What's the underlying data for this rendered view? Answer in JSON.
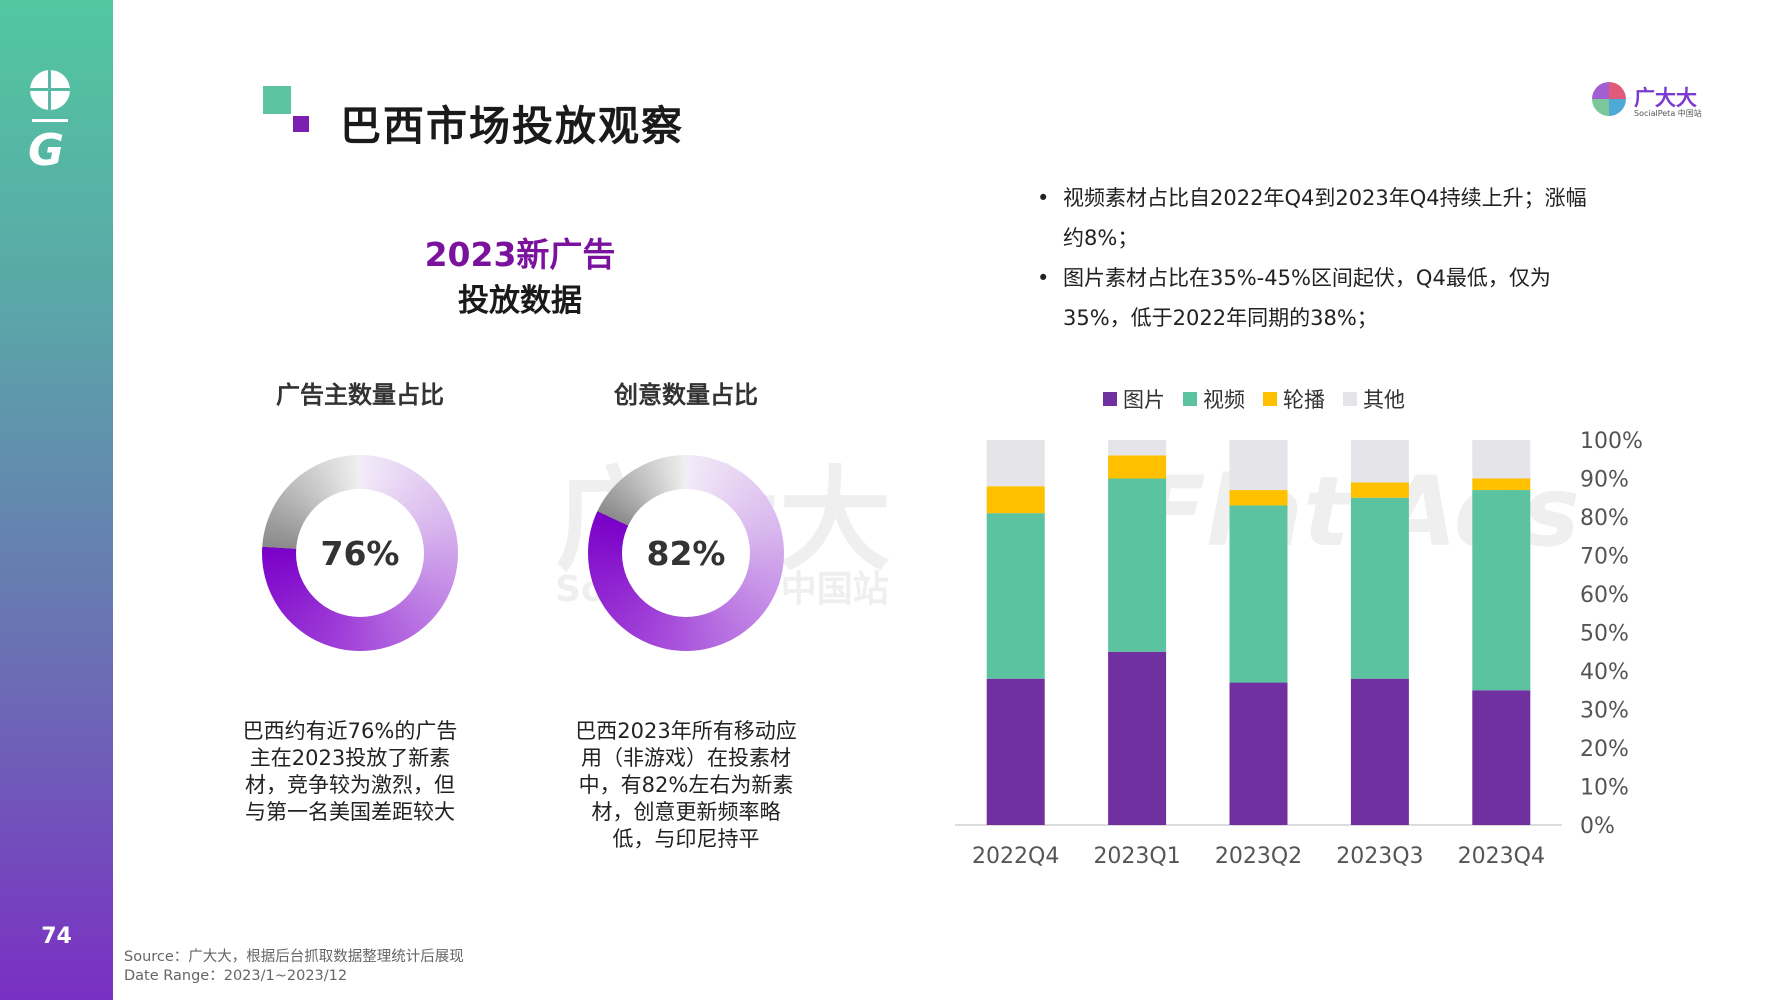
{
  "page": {
    "title": "巴西市场投放观察",
    "page_number": "74",
    "brand_name": "广大大",
    "brand_sub": "SocialPeta 中国站"
  },
  "section": {
    "title_line1": "2023新广告",
    "title_line2": "投放数据"
  },
  "donuts": [
    {
      "title": "广告主数量占比",
      "value": 76,
      "label": "76%",
      "description": "巴西约有近76%的广告主在2023投放了新素材，竞争较为激烈，但与第一名美国差距较大"
    },
    {
      "title": "创意数量占比",
      "value": 82,
      "label": "82%",
      "description": "巴西2023年所有移动应用（非游戏）在投素材中，有82%左右为新素材，创意更新频率略低，与印尼持平"
    }
  ],
  "bullets": [
    "视频素材占比自2022年Q4到2023年Q4持续上升；涨幅约8%；",
    "图片素材占比在35%-45%区间起伏，Q4最低，仅为35%，低于2022年同期的38%；"
  ],
  "watermarks": {
    "center_main": "广大大",
    "center_sub": "SocialPeta 中国站",
    "right": "Flat Ads"
  },
  "colors": {
    "image": "#7030a0",
    "video": "#5bc3a0",
    "carousel": "#ffc000",
    "other": "#e5e5e9",
    "accent_purple": "#7a129e",
    "donut_gray": "#9a9a9a"
  },
  "chart_data": {
    "type": "bar",
    "stacked": true,
    "categories": [
      "2022Q4",
      "2023Q1",
      "2023Q2",
      "2023Q3",
      "2023Q4"
    ],
    "series": [
      {
        "name": "图片",
        "values": [
          38,
          45,
          37,
          38,
          35
        ]
      },
      {
        "name": "视频",
        "values": [
          43,
          45,
          46,
          47,
          52
        ]
      },
      {
        "name": "轮播",
        "values": [
          7,
          6,
          4,
          4,
          3
        ]
      },
      {
        "name": "其他",
        "values": [
          12,
          4,
          13,
          11,
          10
        ]
      }
    ],
    "yticks": [
      "0%",
      "10%",
      "20%",
      "30%",
      "40%",
      "50%",
      "60%",
      "70%",
      "80%",
      "90%",
      "100%"
    ],
    "ylim": [
      0,
      100
    ],
    "legend": "top"
  },
  "source": {
    "line1": "Source：广大大，根据后台抓取数据整理统计后展现",
    "line2": "Date Range：2023/1~2023/12"
  }
}
